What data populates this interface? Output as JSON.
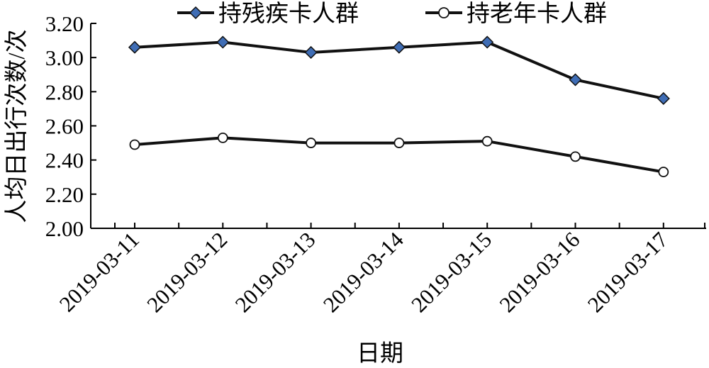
{
  "chart_data": {
    "type": "line",
    "xlabel": "日期",
    "ylabel": "人均日出行次数/次",
    "categories": [
      "2019-03-11",
      "2019-03-12",
      "2019-03-13",
      "2019-03-14",
      "2019-03-15",
      "2019-03-16",
      "2019-03-17"
    ],
    "ylim": [
      2.0,
      3.2
    ],
    "yticks": [
      "2.00",
      "2.20",
      "2.40",
      "2.60",
      "2.80",
      "3.00",
      "3.20"
    ],
    "grid": false,
    "legend_position": "top",
    "series": [
      {
        "name": "持残疾卡人群",
        "marker": "diamond",
        "marker_color": "#3f6db5",
        "line_color": "#111111",
        "values": [
          3.06,
          3.09,
          3.03,
          3.06,
          3.09,
          2.87,
          2.76
        ]
      },
      {
        "name": "持老年卡人群",
        "marker": "circle",
        "marker_color": "#ffffff",
        "line_color": "#111111",
        "values": [
          2.49,
          2.53,
          2.5,
          2.5,
          2.51,
          2.42,
          2.33
        ]
      }
    ]
  }
}
